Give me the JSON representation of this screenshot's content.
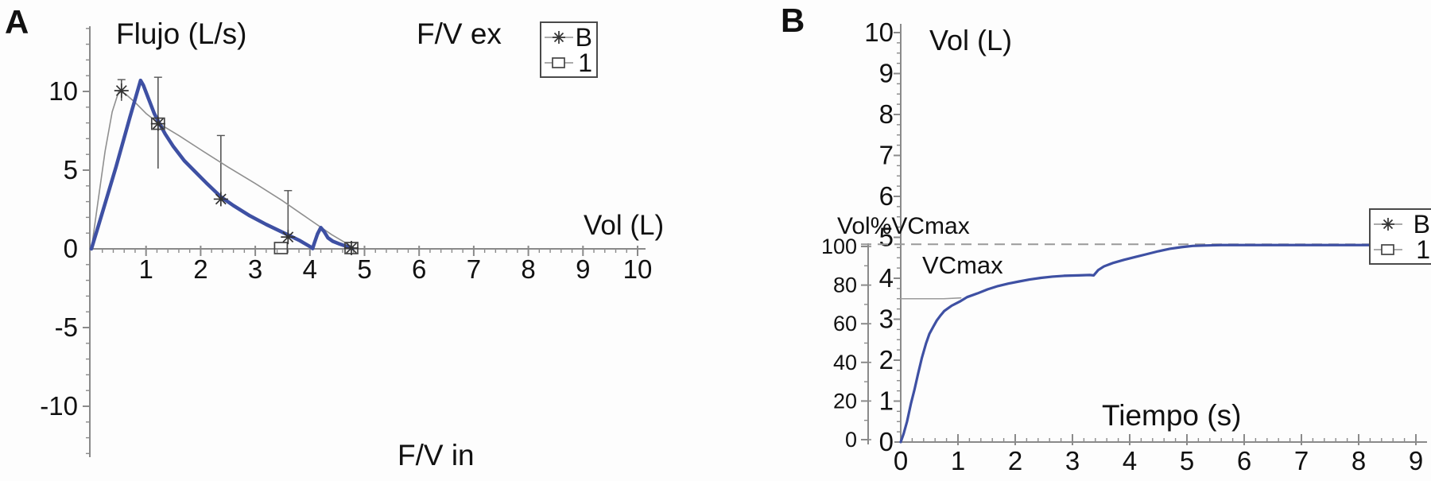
{
  "panels": {
    "a": {
      "label": "A",
      "title": "Flujo (L/s)",
      "fv_ex": "F/V ex",
      "fv_in": "F/V in",
      "x_label": "Vol (L)",
      "legend": [
        {
          "marker": "asterisk",
          "label": "B"
        },
        {
          "marker": "square",
          "label": "1"
        }
      ]
    },
    "b": {
      "label": "B",
      "title": "Vol (L)",
      "y2_label": "Vol%VCmax",
      "vcmax_annotation": "VCmax",
      "x_label": "Tiempo (s)",
      "legend": [
        {
          "marker": "asterisk",
          "label": "B"
        },
        {
          "marker": "square",
          "label": "1"
        }
      ]
    }
  },
  "colors": {
    "accent_blue": "#3e50a3",
    "series_gray": "#8f8f8f",
    "axis_gray": "#8a8a8a",
    "marker_dark": "#333333",
    "dash_gray": "#9a9a9a",
    "text_black": "#111111"
  },
  "chart_data": [
    {
      "type": "line",
      "title": "F/V ex",
      "subtitle_bottom": "F/V in",
      "ylabel": "Flujo (L/s)",
      "xlabel": "Vol (L)",
      "xlim": [
        0,
        10.15
      ],
      "ylim": [
        -13,
        14
      ],
      "xticks": [
        1,
        2,
        3,
        4,
        5,
        6,
        7,
        8,
        9,
        10
      ],
      "yticks": [
        10,
        5,
        0,
        -5,
        -10
      ],
      "x_minor_step": 0.2,
      "y_minor_step": 1,
      "grid": false,
      "legend_position": "top-right-inside",
      "legend_entries": [
        "B",
        "1"
      ],
      "series": [
        {
          "name": "B",
          "color": "#8f8f8f",
          "width": 1.6,
          "points": [
            [
              0,
              0
            ],
            [
              0.12,
              3.0
            ],
            [
              0.25,
              6.2
            ],
            [
              0.38,
              8.7
            ],
            [
              0.5,
              10.0
            ],
            [
              0.62,
              9.85
            ],
            [
              0.8,
              9.3
            ],
            [
              1.0,
              8.6
            ],
            [
              1.24,
              7.95
            ],
            [
              1.6,
              7.2
            ],
            [
              2.0,
              6.3
            ],
            [
              2.5,
              5.2
            ],
            [
              3.0,
              4.15
            ],
            [
              3.5,
              3.05
            ],
            [
              4.0,
              1.85
            ],
            [
              4.4,
              0.9
            ],
            [
              4.8,
              0.08
            ]
          ]
        },
        {
          "name": "1",
          "color": "#3e50a3",
          "width": 4.5,
          "points": [
            [
              0,
              0
            ],
            [
              0.2,
              2.3
            ],
            [
              0.45,
              5.2
            ],
            [
              0.7,
              8.3
            ],
            [
              0.9,
              10.7
            ],
            [
              0.95,
              10.4
            ],
            [
              1.05,
              9.5
            ],
            [
              1.15,
              8.6
            ],
            [
              1.24,
              8.0
            ],
            [
              1.35,
              7.3
            ],
            [
              1.5,
              6.5
            ],
            [
              1.7,
              5.6
            ],
            [
              1.9,
              4.9
            ],
            [
              2.1,
              4.2
            ],
            [
              2.37,
              3.3
            ],
            [
              2.6,
              2.75
            ],
            [
              2.9,
              2.1
            ],
            [
              3.2,
              1.55
            ],
            [
              3.5,
              1.05
            ],
            [
              3.8,
              0.55
            ],
            [
              4.0,
              0.15
            ],
            [
              4.05,
              0.02
            ],
            [
              4.08,
              0.35
            ],
            [
              4.14,
              0.95
            ],
            [
              4.2,
              1.35
            ],
            [
              4.26,
              1.1
            ],
            [
              4.33,
              0.7
            ],
            [
              4.42,
              0.48
            ],
            [
              4.55,
              0.3
            ],
            [
              4.65,
              0.18
            ],
            [
              4.78,
              0.02
            ]
          ]
        }
      ],
      "markers_asterisk": [
        [
          0.55,
          10.05
        ],
        [
          1.22,
          7.95
        ],
        [
          2.37,
          3.16
        ],
        [
          3.6,
          0.75
        ],
        [
          4.76,
          0.05
        ]
      ],
      "markers_square": [
        [
          1.22,
          7.95
        ],
        [
          3.47,
          0.05
        ],
        [
          4.76,
          0.05
        ]
      ],
      "error_bars": [
        {
          "x": 0.55,
          "lo": 9.4,
          "hi": 10.75
        },
        {
          "x": 1.22,
          "lo": 5.1,
          "hi": 10.9
        },
        {
          "x": 2.37,
          "lo": 3.1,
          "hi": 7.2
        },
        {
          "x": 3.6,
          "lo": 0.7,
          "hi": 3.7
        }
      ]
    },
    {
      "type": "line",
      "ylabel": "Vol (L)",
      "y2label": "Vol%VCmax",
      "xlabel": "Tiempo (s)",
      "annotation": "VCmax",
      "xlim": [
        0,
        9.2
      ],
      "ylim": [
        0,
        10.2
      ],
      "y2lim": [
        0,
        100
      ],
      "xticks": [
        0,
        1,
        2,
        3,
        4,
        5,
        6,
        7,
        8,
        9
      ],
      "yticks": [
        0,
        1,
        2,
        3,
        4,
        5,
        6,
        7,
        8,
        9,
        10
      ],
      "y2ticks": [
        0,
        20,
        40,
        60,
        80,
        100
      ],
      "x_minor_step": 0.2,
      "y_minor_step": 0.25,
      "y2_minor_step": 10,
      "grid": false,
      "legend_position": "right-inside",
      "legend_entries": [
        "B",
        "1"
      ],
      "dashed_level_L": 4.83,
      "series": [
        {
          "name": "B",
          "color": "#9a9a9a",
          "width": 1.6,
          "points": [
            [
              0,
              3.5
            ],
            [
              0.75,
              3.5
            ],
            [
              1.05,
              3.52
            ]
          ]
        },
        {
          "name": "1",
          "color": "#3e50a3",
          "width": 3.2,
          "points": [
            [
              0,
              0
            ],
            [
              0.05,
              0.2
            ],
            [
              0.11,
              0.5
            ],
            [
              0.18,
              0.95
            ],
            [
              0.24,
              1.28
            ],
            [
              0.3,
              1.65
            ],
            [
              0.37,
              2.06
            ],
            [
              0.44,
              2.4
            ],
            [
              0.5,
              2.64
            ],
            [
              0.57,
              2.82
            ],
            [
              0.63,
              2.97
            ],
            [
              0.7,
              3.1
            ],
            [
              0.76,
              3.2
            ],
            [
              0.83,
              3.27
            ],
            [
              0.89,
              3.33
            ],
            [
              1.03,
              3.43
            ],
            [
              1.16,
              3.54
            ],
            [
              1.34,
              3.63
            ],
            [
              1.52,
              3.73
            ],
            [
              1.7,
              3.81
            ],
            [
              1.88,
              3.87
            ],
            [
              2.06,
              3.92
            ],
            [
              2.25,
              3.97
            ],
            [
              2.45,
              4.01
            ],
            [
              2.65,
              4.04
            ],
            [
              2.85,
              4.06
            ],
            [
              3.1,
              4.07
            ],
            [
              3.3,
              4.08
            ],
            [
              3.37,
              4.07
            ],
            [
              3.45,
              4.2
            ],
            [
              3.55,
              4.29
            ],
            [
              3.7,
              4.37
            ],
            [
              3.9,
              4.45
            ],
            [
              4.1,
              4.52
            ],
            [
              4.3,
              4.59
            ],
            [
              4.5,
              4.66
            ],
            [
              4.7,
              4.72
            ],
            [
              4.9,
              4.76
            ],
            [
              5.1,
              4.79
            ],
            [
              5.3,
              4.8
            ],
            [
              5.6,
              4.81
            ],
            [
              6.5,
              4.81
            ],
            [
              7.5,
              4.81
            ],
            [
              8.18,
              4.81
            ]
          ]
        }
      ]
    }
  ]
}
